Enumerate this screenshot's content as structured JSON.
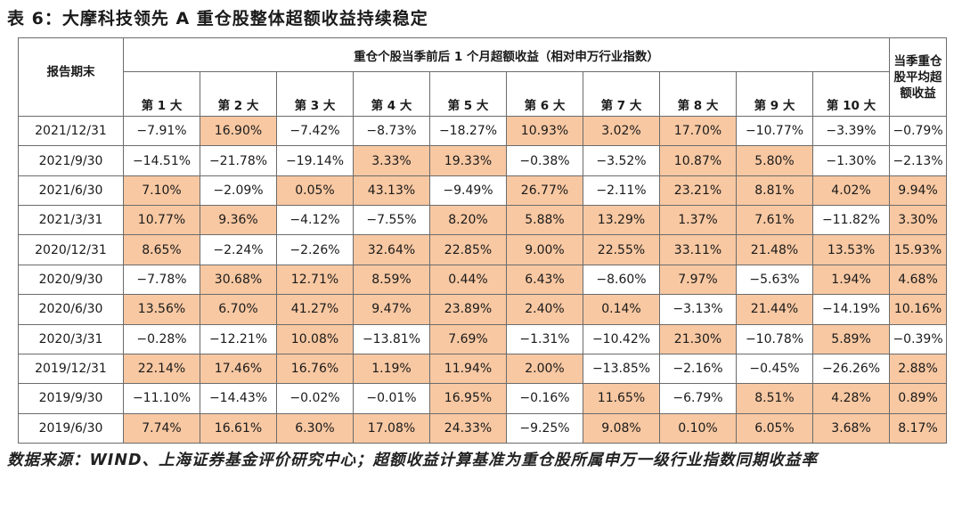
{
  "title": "表 6：大摩科技领先 A 重仓股整体超额收益持续稳定",
  "table": {
    "date_header": "报告期末",
    "group_header": "重仓个股当季前后 1 个月超额收益（相对申万行业指数）",
    "avg_header": "当季重仓股平均超额收益",
    "rank_headers": [
      "第 1 大",
      "第 2 大",
      "第 3 大",
      "第 4 大",
      "第 5 大",
      "第 6 大",
      "第 7 大",
      "第 8 大",
      "第 9 大",
      "第 10 大"
    ],
    "highlight_color": "#f8c8a2",
    "rows": [
      {
        "date": "2021/12/31",
        "values": [
          "−7.91%",
          "16.90%",
          "−7.42%",
          "−8.73%",
          "−18.27%",
          "10.93%",
          "3.02%",
          "17.70%",
          "−10.77%",
          "−3.39%"
        ],
        "avg": "−0.79%"
      },
      {
        "date": "2021/9/30",
        "values": [
          "−14.51%",
          "−21.78%",
          "−19.14%",
          "3.33%",
          "19.33%",
          "−0.38%",
          "−3.52%",
          "10.87%",
          "5.80%",
          "−1.30%"
        ],
        "avg": "−2.13%"
      },
      {
        "date": "2021/6/30",
        "values": [
          "7.10%",
          "−2.09%",
          "0.05%",
          "43.13%",
          "−9.49%",
          "26.77%",
          "−2.11%",
          "23.21%",
          "8.81%",
          "4.02%"
        ],
        "avg": "9.94%"
      },
      {
        "date": "2021/3/31",
        "values": [
          "10.77%",
          "9.36%",
          "−4.12%",
          "−7.55%",
          "8.20%",
          "5.88%",
          "13.29%",
          "1.37%",
          "7.61%",
          "−11.82%"
        ],
        "avg": "3.30%"
      },
      {
        "date": "2020/12/31",
        "values": [
          "8.65%",
          "−2.24%",
          "−2.26%",
          "32.64%",
          "22.85%",
          "9.00%",
          "22.55%",
          "33.11%",
          "21.48%",
          "13.53%"
        ],
        "avg": "15.93%"
      },
      {
        "date": "2020/9/30",
        "values": [
          "−7.78%",
          "30.68%",
          "12.71%",
          "8.59%",
          "0.44%",
          "6.43%",
          "−8.60%",
          "7.97%",
          "−5.63%",
          "1.94%"
        ],
        "avg": "4.68%"
      },
      {
        "date": "2020/6/30",
        "values": [
          "13.56%",
          "6.70%",
          "41.27%",
          "9.47%",
          "23.89%",
          "2.40%",
          "0.14%",
          "−3.13%",
          "21.44%",
          "−14.19%"
        ],
        "avg": "10.16%"
      },
      {
        "date": "2020/3/31",
        "values": [
          "−0.28%",
          "−12.21%",
          "10.08%",
          "−13.81%",
          "7.69%",
          "−1.31%",
          "−10.42%",
          "21.30%",
          "−10.78%",
          "5.89%"
        ],
        "avg": "−0.39%"
      },
      {
        "date": "2019/12/31",
        "values": [
          "22.14%",
          "17.46%",
          "16.76%",
          "1.19%",
          "11.94%",
          "2.00%",
          "−13.85%",
          "−2.16%",
          "−0.45%",
          "−26.26%"
        ],
        "avg": "2.88%"
      },
      {
        "date": "2019/9/30",
        "values": [
          "−11.10%",
          "−14.43%",
          "−0.02%",
          "−0.01%",
          "16.95%",
          "−0.16%",
          "11.65%",
          "−6.79%",
          "8.51%",
          "4.28%"
        ],
        "avg": "0.89%"
      },
      {
        "date": "2019/6/30",
        "values": [
          "7.74%",
          "16.61%",
          "6.30%",
          "17.08%",
          "24.33%",
          "−9.25%",
          "9.08%",
          "0.10%",
          "6.05%",
          "3.68%"
        ],
        "avg": "8.17%"
      }
    ]
  },
  "chart_data": {
    "type": "table",
    "title": "表 6：大摩科技领先 A 重仓股整体超额收益持续稳定",
    "columns": [
      "报告期末",
      "第 1 大",
      "第 2 大",
      "第 3 大",
      "第 4 大",
      "第 5 大",
      "第 6 大",
      "第 7 大",
      "第 8 大",
      "第 9 大",
      "第 10 大",
      "当季重仓股平均超额收益"
    ],
    "rows": [
      [
        "2021/12/31",
        -7.91,
        16.9,
        -7.42,
        -8.73,
        -18.27,
        10.93,
        3.02,
        17.7,
        -10.77,
        -3.39,
        -0.79
      ],
      [
        "2021/9/30",
        -14.51,
        -21.78,
        -19.14,
        3.33,
        19.33,
        -0.38,
        -3.52,
        10.87,
        5.8,
        -1.3,
        -2.13
      ],
      [
        "2021/6/30",
        7.1,
        -2.09,
        0.05,
        43.13,
        -9.49,
        26.77,
        -2.11,
        23.21,
        8.81,
        4.02,
        9.94
      ],
      [
        "2021/3/31",
        10.77,
        9.36,
        -4.12,
        -7.55,
        8.2,
        5.88,
        13.29,
        1.37,
        7.61,
        -11.82,
        3.3
      ],
      [
        "2020/12/31",
        8.65,
        -2.24,
        -2.26,
        32.64,
        22.85,
        9.0,
        22.55,
        33.11,
        21.48,
        13.53,
        15.93
      ],
      [
        "2020/9/30",
        -7.78,
        30.68,
        12.71,
        8.59,
        0.44,
        6.43,
        -8.6,
        7.97,
        -5.63,
        1.94,
        4.68
      ],
      [
        "2020/6/30",
        13.56,
        6.7,
        41.27,
        9.47,
        23.89,
        2.4,
        0.14,
        -3.13,
        21.44,
        -14.19,
        10.16
      ],
      [
        "2020/3/31",
        -0.28,
        -12.21,
        10.08,
        -13.81,
        7.69,
        -1.31,
        -10.42,
        21.3,
        -10.78,
        5.89,
        -0.39
      ],
      [
        "2019/12/31",
        22.14,
        17.46,
        16.76,
        1.19,
        11.94,
        2.0,
        -13.85,
        -2.16,
        -0.45,
        -26.26,
        2.88
      ],
      [
        "2019/9/30",
        -11.1,
        -14.43,
        -0.02,
        -0.01,
        16.95,
        -0.16,
        11.65,
        -6.79,
        8.51,
        4.28,
        0.89
      ],
      [
        "2019/6/30",
        7.74,
        16.61,
        6.3,
        17.08,
        24.33,
        -9.25,
        9.08,
        0.1,
        6.05,
        3.68,
        8.17
      ]
    ]
  },
  "source": "数据来源：WIND、上海证券基金评价研究中心；超额收益计算基准为重仓股所属申万一级行业指数同期收益率"
}
